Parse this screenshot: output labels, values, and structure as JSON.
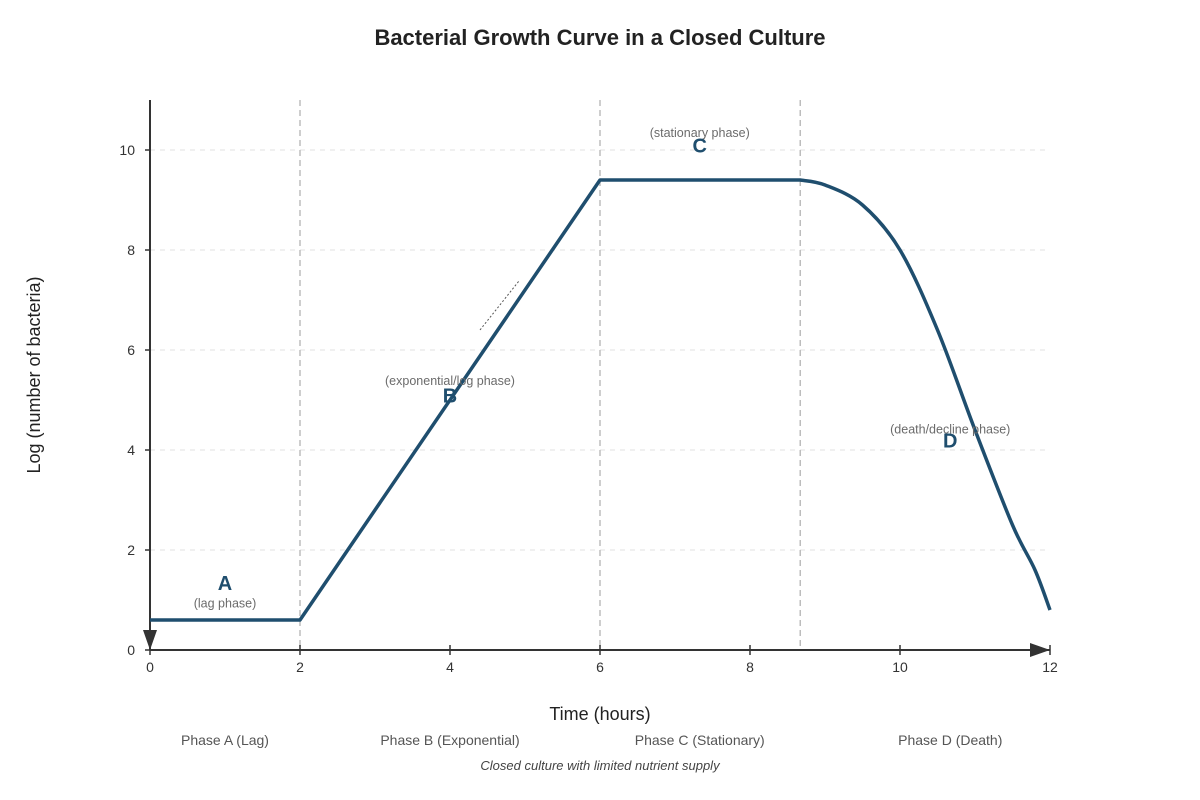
{
  "chart_data": {
    "type": "line",
    "title": "Bacterial Growth Curve in a Closed Culture",
    "xlabel": "Time (hours)",
    "ylabel": "Log (number of bacteria)",
    "xlim": [
      0,
      12
    ],
    "ylim": [
      0,
      11
    ],
    "x_ticks": [
      "0",
      "2",
      "4",
      "6",
      "8",
      "10",
      "12"
    ],
    "y_ticks": [
      "0",
      "2",
      "4",
      "6",
      "8",
      "10"
    ],
    "grid": "horizontal dashed",
    "series": [
      {
        "color": "#1f4e6e",
        "x": [
          0,
          2,
          6,
          8.67,
          9,
          9.5,
          10,
          10.5,
          11,
          11.5,
          11.8,
          12
        ],
        "y": [
          0.6,
          0.6,
          9.4,
          9.4,
          9.3,
          8.9,
          8.0,
          6.4,
          4.4,
          2.5,
          1.6,
          0.8
        ]
      }
    ],
    "phase_boundaries": [
      2,
      6,
      8.67
    ],
    "phases": [
      {
        "letter": "A",
        "note": "(lag phase)",
        "caption": "Phase A (Lag)"
      },
      {
        "letter": "B",
        "note": "(exponential/log phase)",
        "caption": "Phase B (Exponential)"
      },
      {
        "letter": "C",
        "note": "(stationary phase)",
        "caption": "Phase C (Stationary)"
      },
      {
        "letter": "D",
        "note": "(death/decline phase)",
        "caption": "Phase D (Death)"
      }
    ],
    "footnote": "Closed culture with limited nutrient supply"
  },
  "colors": {
    "curve": "#1f4e6e",
    "axis": "#333333",
    "grid": "#e2e2e2",
    "boundary": "#bdbdbd"
  }
}
